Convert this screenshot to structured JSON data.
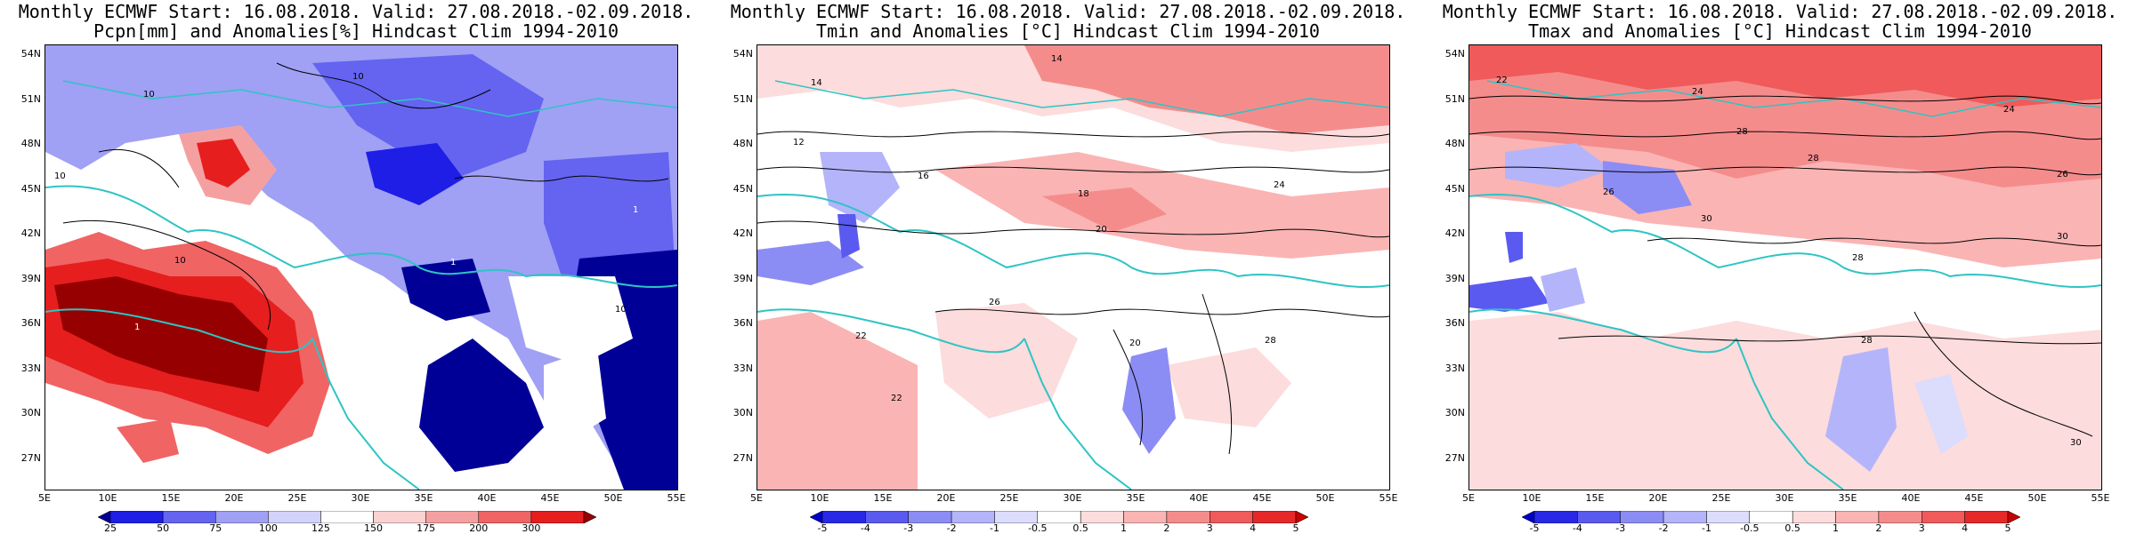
{
  "panels": [
    {
      "title_line1": "Monthly ECMWF Start: 16.08.2018. Valid: 27.08.2018.-02.09.2018.",
      "title_line2": "Pcpn[mm] and Anomalies[%] Hindcast Clim 1994-2010",
      "colorbar_labels": [
        "25",
        "50",
        "75",
        "100",
        "125",
        "150",
        "175",
        "200",
        "300"
      ],
      "colorbar_colors": [
        "#000096",
        "#1e1ee6",
        "#6464f0",
        "#a0a0f5",
        "#d2d2fa",
        "#ffffff",
        "#fad2d2",
        "#f5a0a0",
        "#f06464",
        "#e61e1e",
        "#960000"
      ],
      "contour_labels": [
        "10",
        "10",
        "10",
        "10",
        "1",
        "1",
        "1",
        "10"
      ]
    },
    {
      "title_line1": "Monthly ECMWF Start: 16.08.2018. Valid: 27.08.2018.-02.09.2018.",
      "title_line2": "Tmin and Anomalies [°C] Hindcast Clim 1994-2010",
      "colorbar_labels": [
        "-5",
        "-4",
        "-3",
        "-2",
        "-1",
        "-0.5",
        "0.5",
        "1",
        "2",
        "3",
        "4",
        "5"
      ],
      "colorbar_colors": [
        "#0000c8",
        "#2828e6",
        "#5a5af0",
        "#8c8cf5",
        "#b4b4fa",
        "#dcdcfc",
        "#ffffff",
        "#fcdcdc",
        "#fab4b4",
        "#f58c8c",
        "#f05a5a",
        "#e62828",
        "#c80000"
      ],
      "contour_labels": [
        "14",
        "14",
        "12",
        "16",
        "18",
        "20",
        "22",
        "24",
        "26",
        "28",
        "20",
        "22"
      ]
    },
    {
      "title_line1": "Monthly ECMWF Start: 16.08.2018. Valid: 27.08.2018.-02.09.2018.",
      "title_line2": "Tmax and Anomalies [°C] Hindcast Clim 1994-2010",
      "colorbar_labels": [
        "-5",
        "-4",
        "-3",
        "-2",
        "-1",
        "-0.5",
        "0.5",
        "1",
        "2",
        "3",
        "4",
        "5"
      ],
      "colorbar_colors": [
        "#0000c8",
        "#2828e6",
        "#5a5af0",
        "#8c8cf5",
        "#b4b4fa",
        "#dcdcfc",
        "#ffffff",
        "#fcdcdc",
        "#fab4b4",
        "#f58c8c",
        "#f05a5a",
        "#e62828",
        "#c80000"
      ],
      "contour_labels": [
        "22",
        "24",
        "24",
        "26",
        "28",
        "30",
        "28",
        "26",
        "30",
        "28",
        "30",
        "28"
      ]
    }
  ],
  "lat_labels": [
    "54N",
    "51N",
    "48N",
    "45N",
    "42N",
    "39N",
    "36N",
    "33N",
    "30N",
    "27N"
  ],
  "lon_labels": [
    "5E",
    "10E",
    "15E",
    "20E",
    "25E",
    "30E",
    "35E",
    "40E",
    "45E",
    "50E",
    "55E"
  ],
  "colors": {
    "coast": "#2ec4c4",
    "contour": "#000000"
  }
}
